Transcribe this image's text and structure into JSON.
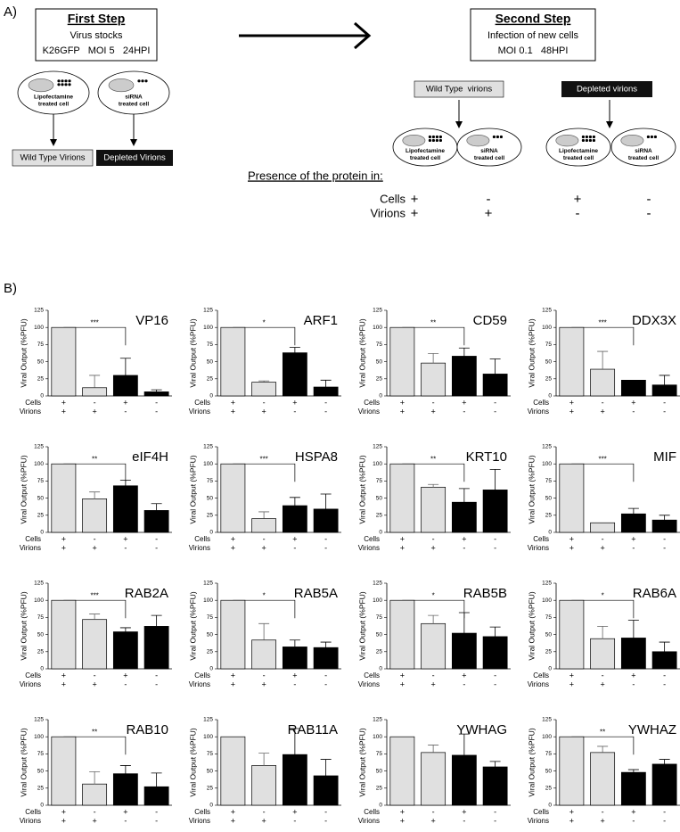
{
  "diagram": {
    "label_a": "A)",
    "label_b": "B)",
    "first_step": {
      "title": "First Step",
      "lines": [
        "Virus stocks",
        "K26GFP   MOI 5   24HPI"
      ]
    },
    "second_step": {
      "title": "Second Step",
      "lines": [
        "Infection of new cells",
        "MOI 0.1   48HPI"
      ]
    },
    "cell_left": [
      "Lipofectamine",
      "treated cell"
    ],
    "cell_right": [
      "siRNA",
      "treated cell"
    ],
    "wild_type_label": "Wild Type Virions",
    "depleted_label": "Depleted Virions",
    "wild_type_label_2": "Wild Type  virions",
    "depleted_label_2": "Depleted virions",
    "presence": "Presence of the protein in:",
    "rows": [
      {
        "label": "Cells",
        "signs": [
          "+",
          "-",
          "+",
          "-"
        ]
      },
      {
        "label": "Virions",
        "signs": [
          "+",
          "+",
          "-",
          "-"
        ]
      }
    ]
  },
  "chart_data": [
    {
      "type": "bar",
      "title": "VP16",
      "values": [
        100,
        12,
        30,
        6
      ],
      "errors": [
        0,
        18,
        25,
        3
      ],
      "significance": "***"
    },
    {
      "type": "bar",
      "title": "ARF1",
      "values": [
        100,
        20,
        63,
        13
      ],
      "errors": [
        0,
        2,
        8,
        10
      ],
      "significance": "*"
    },
    {
      "type": "bar",
      "title": "CD59",
      "values": [
        100,
        48,
        58,
        32
      ],
      "errors": [
        0,
        14,
        12,
        22
      ],
      "significance": "**"
    },
    {
      "type": "bar",
      "title": "DDX3X",
      "values": [
        100,
        39,
        23,
        16
      ],
      "errors": [
        0,
        26,
        0,
        14
      ],
      "significance": "***"
    },
    {
      "type": "bar",
      "title": "eIF4H",
      "values": [
        100,
        49,
        68,
        32
      ],
      "errors": [
        0,
        10,
        8,
        10
      ],
      "significance": "**"
    },
    {
      "type": "bar",
      "title": "HSPA8",
      "values": [
        100,
        20,
        39,
        34
      ],
      "errors": [
        0,
        10,
        12,
        22
      ],
      "significance": "***"
    },
    {
      "type": "bar",
      "title": "KRT10",
      "values": [
        100,
        66,
        44,
        62
      ],
      "errors": [
        0,
        4,
        20,
        30
      ],
      "significance": "**"
    },
    {
      "type": "bar",
      "title": "MIF",
      "values": [
        100,
        14,
        27,
        18
      ],
      "errors": [
        0,
        0,
        8,
        7
      ],
      "significance": "***"
    },
    {
      "type": "bar",
      "title": "RAB2A",
      "values": [
        100,
        72,
        54,
        62
      ],
      "errors": [
        0,
        8,
        6,
        16
      ],
      "significance": "***"
    },
    {
      "type": "bar",
      "title": "RAB5A",
      "values": [
        100,
        42,
        32,
        31
      ],
      "errors": [
        0,
        24,
        10,
        8
      ],
      "significance": "*"
    },
    {
      "type": "bar",
      "title": "RAB5B",
      "values": [
        100,
        66,
        52,
        47
      ],
      "errors": [
        0,
        12,
        30,
        14
      ],
      "significance": "*"
    },
    {
      "type": "bar",
      "title": "RAB6A",
      "values": [
        100,
        44,
        45,
        25
      ],
      "errors": [
        0,
        18,
        26,
        14
      ],
      "significance": "*"
    },
    {
      "type": "bar",
      "title": "RAB10",
      "values": [
        100,
        31,
        46,
        27
      ],
      "errors": [
        0,
        18,
        12,
        20
      ],
      "significance": "**"
    },
    {
      "type": "bar",
      "title": "RAB11A",
      "values": [
        100,
        58,
        74,
        43
      ],
      "errors": [
        0,
        18,
        38,
        24
      ]
    },
    {
      "type": "bar",
      "title": "YWHAG",
      "values": [
        100,
        77,
        73,
        56
      ],
      "errors": [
        0,
        11,
        31,
        8
      ]
    },
    {
      "type": "bar",
      "title": "YWHAZ",
      "values": [
        100,
        77,
        48,
        60
      ],
      "errors": [
        0,
        9,
        4,
        7
      ],
      "significance": "**"
    }
  ],
  "chart_common": {
    "y_label": "Viral Output (%PFU)",
    "ylim": [
      0,
      125
    ],
    "yticks": [
      0,
      25,
      50,
      75,
      100,
      125
    ],
    "colors": [
      "#e0e0e0",
      "#e0e0e0",
      "#000000",
      "#000000"
    ],
    "row_labels": [
      "Cells",
      "Virions"
    ],
    "cells": [
      "+",
      "-",
      "+",
      "-"
    ],
    "virions": [
      "+",
      "+",
      "-",
      "-"
    ]
  }
}
